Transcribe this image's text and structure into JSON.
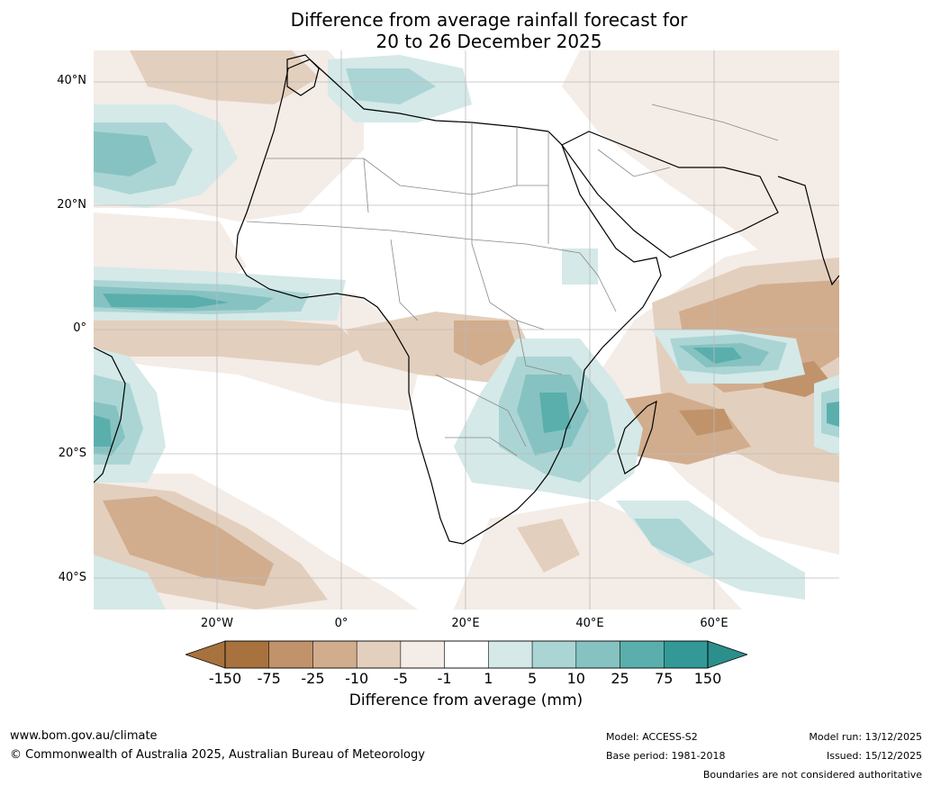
{
  "title_line1": "Difference from average rainfall forecast for",
  "title_line2": "20 to 26 December 2025",
  "lat_labels": [
    "40°N",
    "20°N",
    "0°",
    "20°S",
    "40°S"
  ],
  "lon_labels": [
    "20°W",
    "0°",
    "20°E",
    "40°E",
    "60°E"
  ],
  "colorbar": {
    "ticks": [
      "-150",
      "-75",
      "-25",
      "-10",
      "-5",
      "-1",
      "1",
      "5",
      "10",
      "25",
      "75",
      "150"
    ],
    "colors": [
      "#a8723e",
      "#c0936b",
      "#d1ad8e",
      "#e3cfbd",
      "#f4ece6",
      "#ffffff",
      "#d4e9e8",
      "#abd5d4",
      "#86c2c1",
      "#5aafad",
      "#329996"
    ],
    "extend_low_color": "#a8723e",
    "extend_high_color": "#2b8f8c",
    "label": "Difference from average (mm)"
  },
  "footer": {
    "website": "www.bom.gov.au/climate",
    "copyright": "© Commonwealth of Australia 2025, Australian Bureau of Meteorology",
    "model": "Model: ACCESS-S2",
    "base_period": "Base period: 1981-2018",
    "model_run": "Model run: 13/12/2025",
    "issued": "Issued: 15/12/2025",
    "disclaimer": "Boundaries are not considered authoritative"
  },
  "map_colors": {
    "brown1": "#f4ece6",
    "brown2": "#e3cfbd",
    "brown3": "#d1ad8e",
    "brown4": "#c0936b",
    "teal1": "#d4e9e8",
    "teal2": "#abd5d4",
    "teal3": "#86c2c1",
    "teal4": "#5aafad",
    "teal5": "#329996",
    "grid": "#bbbbbb",
    "coast": "#000000",
    "border": "#888888"
  }
}
